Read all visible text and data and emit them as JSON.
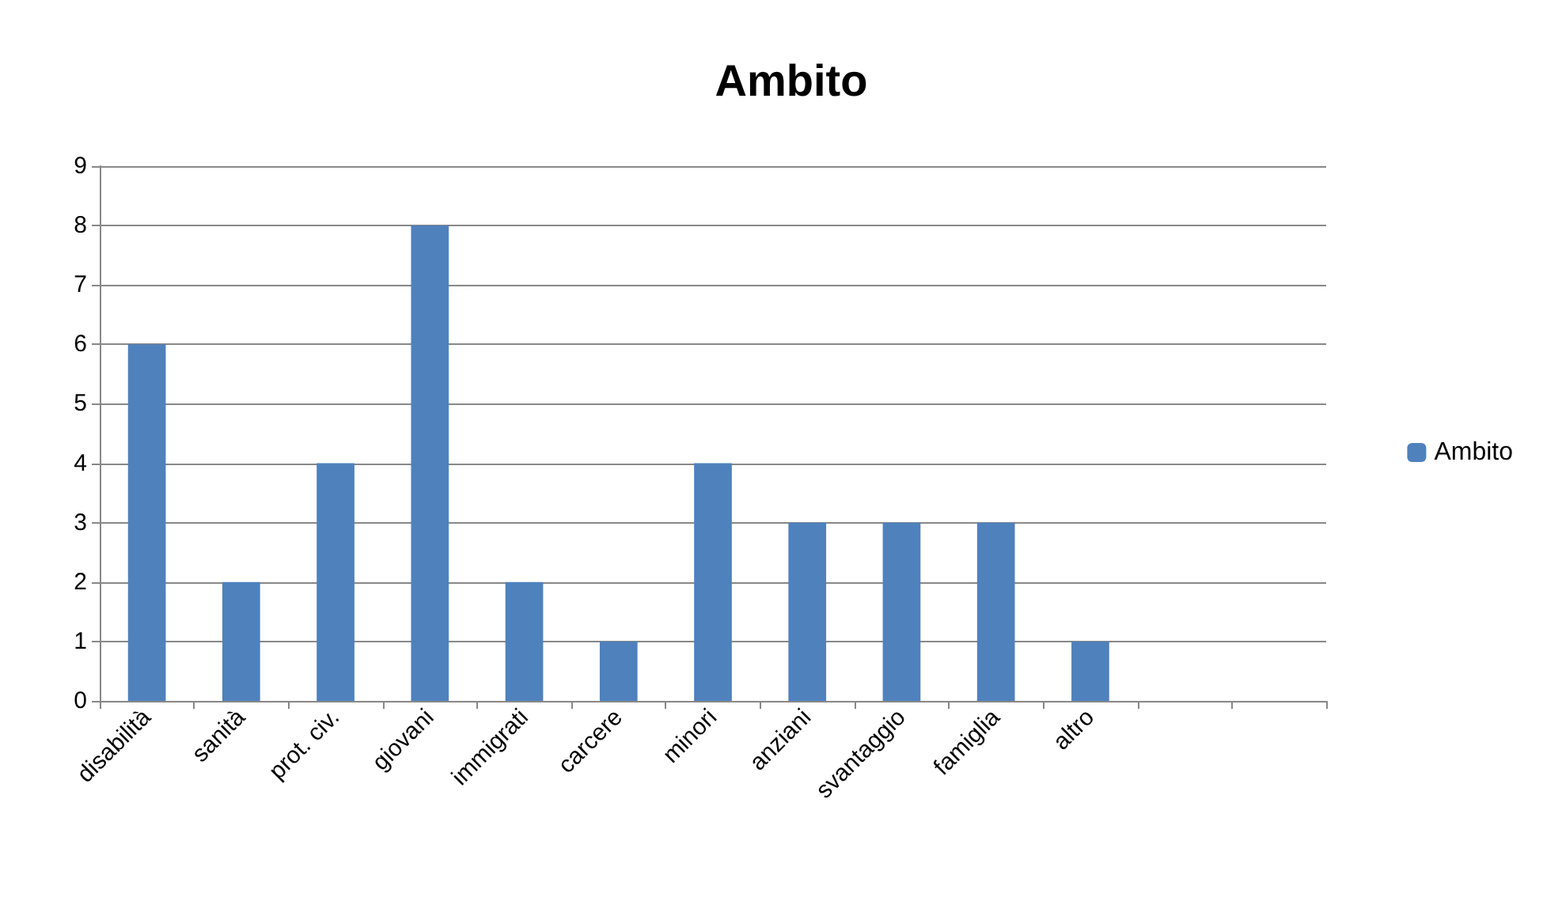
{
  "chart_data": {
    "type": "bar",
    "title": "Ambito",
    "categories": [
      "disabilità",
      "sanità",
      "prot. civ.",
      "giovani",
      "immigrati",
      "carcere",
      "minori",
      "anziani",
      "svantaggio",
      "famiglia",
      "altro",
      null,
      null
    ],
    "series": [
      {
        "name": "Ambito",
        "color": "#4f81bd",
        "values": [
          6,
          2,
          4,
          8,
          2,
          1,
          4,
          3,
          3,
          3,
          1,
          null,
          null
        ]
      }
    ],
    "ylim": [
      0,
      9
    ],
    "yticks": [
      0,
      1,
      2,
      3,
      4,
      5,
      6,
      7,
      8,
      9
    ],
    "grid": "y",
    "legend": "right"
  }
}
